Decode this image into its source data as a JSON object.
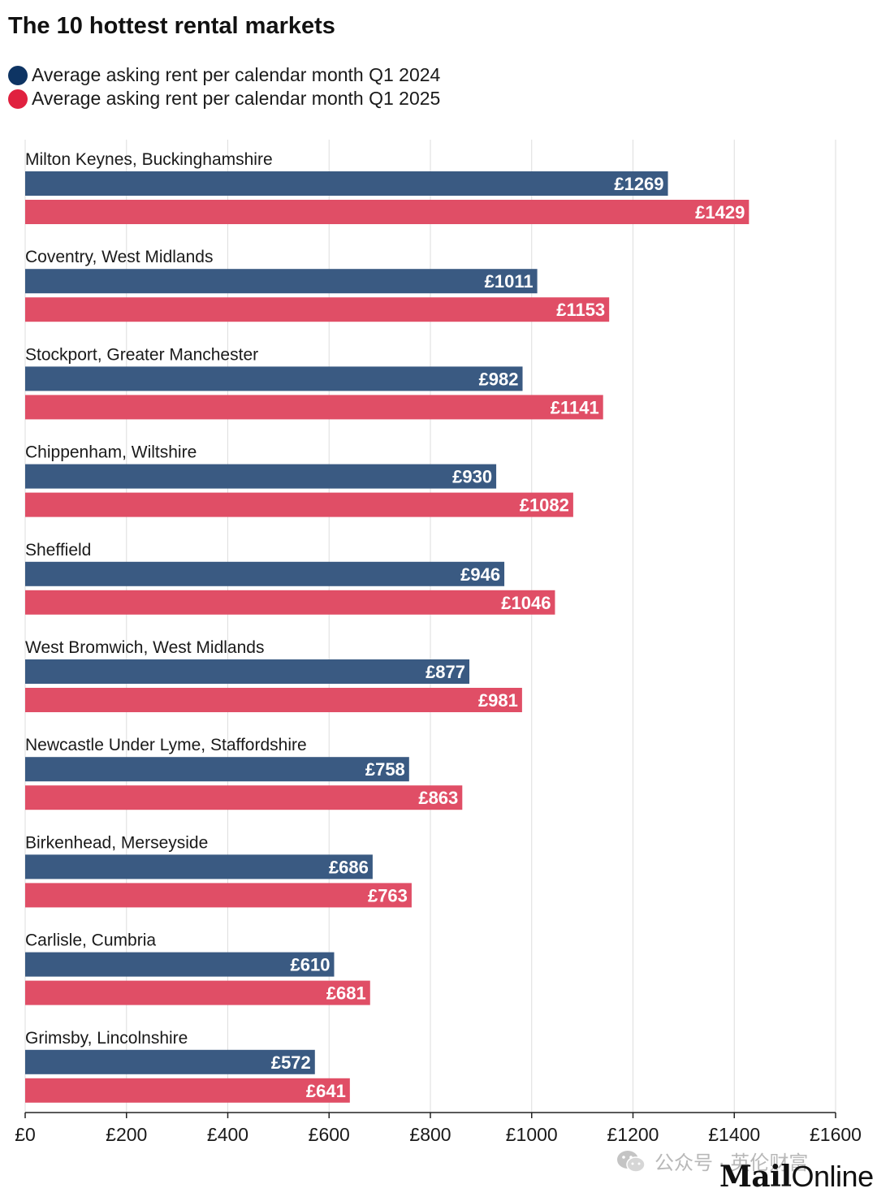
{
  "chart_data": {
    "type": "bar",
    "orientation": "horizontal",
    "title": "The 10 hottest rental markets",
    "categories": [
      "Milton Keynes, Buckinghamshire",
      "Coventry, West Midlands",
      "Stockport, Greater Manchester",
      "Chippenham, Wiltshire",
      "Sheffield",
      "West Bromwich, West Midlands",
      "Newcastle Under Lyme, Staffordshire",
      "Birkenhead, Merseyside",
      "Carlisle, Cumbria",
      "Grimsby, Lincolnshire"
    ],
    "series": [
      {
        "name": "Average asking rent per calendar month Q1 2024",
        "color": "#3a5a82",
        "values": [
          1269,
          1011,
          982,
          930,
          946,
          877,
          758,
          686,
          610,
          572
        ]
      },
      {
        "name": "Average asking rent per calendar month Q1 2025",
        "color": "#e04e66",
        "values": [
          1429,
          1153,
          1141,
          1082,
          1046,
          981,
          863,
          763,
          681,
          641
        ]
      }
    ],
    "value_prefix": "£",
    "xlim": [
      0,
      1600
    ],
    "xticks": [
      0,
      200,
      400,
      600,
      800,
      1000,
      1200,
      1400,
      1600
    ],
    "grid": true,
    "legend_position": "top-left"
  },
  "legend_colors": {
    "q1_2024": "#0e3463",
    "q1_2025": "#e0213f"
  },
  "watermark": {
    "icon": "wechat-icon",
    "text": "公众号 · 英伦财富"
  },
  "logo": {
    "mail": "Mail",
    "online": "Online"
  }
}
